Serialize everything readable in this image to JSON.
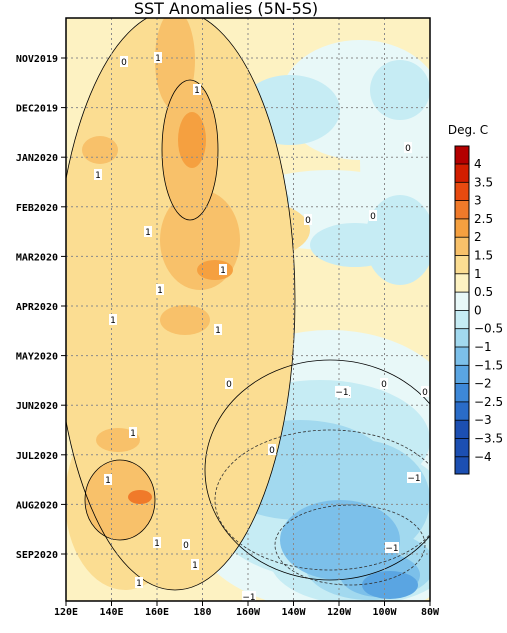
{
  "chart_data": {
    "type": "heatmap",
    "title": "SST Anomalies (5N-5S)",
    "colorbar_label": "Deg. C",
    "x_ticks": [
      "120E",
      "140E",
      "160E",
      "180",
      "160W",
      "140W",
      "120W",
      "100W",
      "80W"
    ],
    "y_ticks": [
      "NOV2019",
      "DEC2019",
      "JAN2020",
      "FEB2020",
      "MAR2020",
      "APR2020",
      "MAY2020",
      "JUN2020",
      "JUL2020",
      "AUG2020",
      "SEP2020"
    ],
    "colorbar_levels": [
      "4",
      "3.5",
      "3",
      "2.5",
      "2",
      "1.5",
      "1",
      "0.5",
      "0",
      "−0.5",
      "−1",
      "−1.5",
      "−2",
      "−2.5",
      "−3",
      "−3.5",
      "−4"
    ],
    "colorbar_colors": [
      "#b40000",
      "#d21e00",
      "#e84a10",
      "#f07a2a",
      "#f5a040",
      "#f8c16a",
      "#fbdd92",
      "#fdf2c2",
      "#e8f8f8",
      "#c6ecf4",
      "#a2d9ef",
      "#7cc0ea",
      "#5aa5e2",
      "#3d88d8",
      "#2a6cc8",
      "#1c4fb2"
    ],
    "contour_labels": [
      "1",
      "0",
      "1",
      "0",
      "1",
      "1",
      "0",
      "1",
      "0",
      "1",
      "1",
      "1",
      "0",
      "1",
      "0",
      "0",
      "−1",
      "1",
      "0",
      "−1",
      "1",
      "1",
      "0",
      "−1",
      "1",
      "−1",
      "−1"
    ],
    "grid": true
  }
}
